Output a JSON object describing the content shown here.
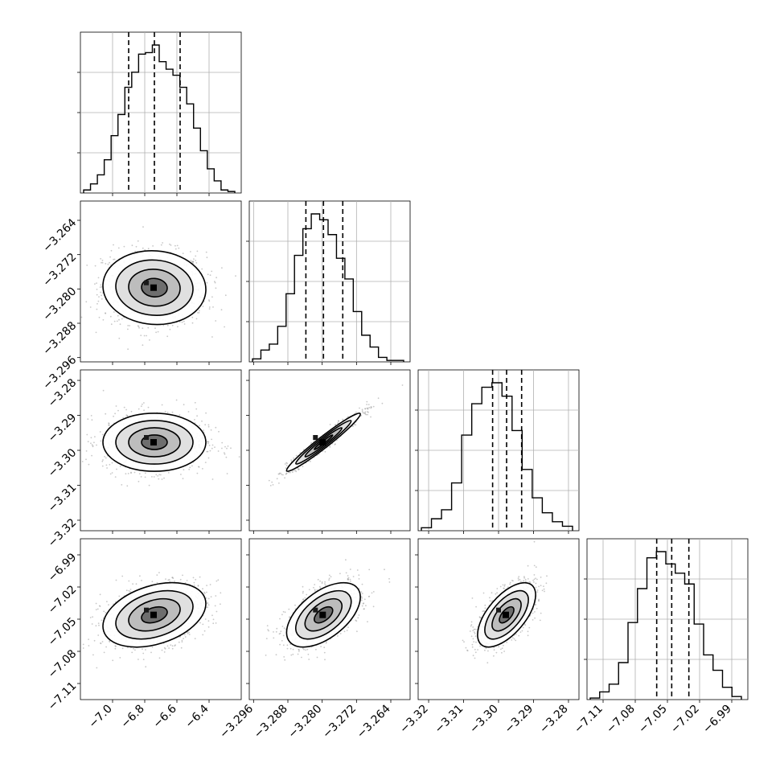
{
  "chart_data": {
    "type": "corner",
    "params": [
      {
        "ticks": [
          -7.0,
          -6.8,
          -6.6,
          -6.4
        ],
        "tick_labels": [
          "−7.0",
          "−6.8",
          "−6.6",
          "−6.4"
        ],
        "range": [
          -7.2,
          -6.2
        ],
        "q16": -6.9,
        "median": -6.74,
        "q84": -6.58
      },
      {
        "ticks": [
          -3.296,
          -3.288,
          -3.28,
          -3.272,
          -3.264
        ],
        "tick_labels": [
          "−3.296",
          "−3.288",
          "−3.280",
          "−3.272",
          "−3.264"
        ],
        "range": [
          -3.297,
          -3.2595
        ],
        "q16": -3.2838,
        "median": -3.2797,
        "q84": -3.2752
      },
      {
        "ticks": [
          -3.32,
          -3.31,
          -3.3,
          -3.29,
          -3.28
        ],
        "tick_labels": [
          "−3.32",
          "−3.31",
          "−3.30",
          "−3.29",
          "−3.28"
        ],
        "range": [
          -3.323,
          -3.277
        ],
        "q16": -3.3017,
        "median": -3.2977,
        "q84": -3.2934
      },
      {
        "ticks": [
          -7.11,
          -7.08,
          -7.05,
          -7.02,
          -6.99
        ],
        "tick_labels": [
          "−7.11",
          "−7.08",
          "−7.05",
          "−7.02",
          "−6.99"
        ],
        "range": [
          -7.125,
          -6.975
        ],
        "q16": -7.06,
        "median": -7.046,
        "q84": -7.03
      }
    ],
    "histograms": [
      {
        "counts": [
          2,
          6,
          12,
          22,
          38,
          52,
          70,
          80,
          92,
          93,
          98,
          87,
          82,
          78,
          70,
          59,
          43,
          28,
          16,
          8,
          2,
          1
        ]
      },
      {
        "counts": [
          2,
          8,
          12,
          24,
          46,
          72,
          90,
          100,
          96,
          86,
          70,
          56,
          34,
          18,
          10,
          3,
          1,
          1
        ]
      },
      {
        "counts": [
          2,
          8,
          14,
          32,
          64,
          85,
          96,
          99,
          90,
          67,
          41,
          22,
          12,
          6,
          3
        ]
      },
      {
        "counts": [
          1,
          5,
          10,
          24,
          50,
          72,
          92,
          96,
          88,
          82,
          75,
          49,
          29,
          19,
          8,
          2
        ]
      }
    ],
    "pairs": [
      {
        "row": 1,
        "col": 0,
        "corr": -0.05
      },
      {
        "row": 2,
        "col": 0,
        "corr": 0.0
      },
      {
        "row": 2,
        "col": 1,
        "corr": 0.97
      },
      {
        "row": 3,
        "col": 0,
        "corr": 0.35
      },
      {
        "row": 3,
        "col": 1,
        "corr": 0.55
      },
      {
        "row": 3,
        "col": 2,
        "corr": 0.62
      }
    ],
    "grid": true
  }
}
